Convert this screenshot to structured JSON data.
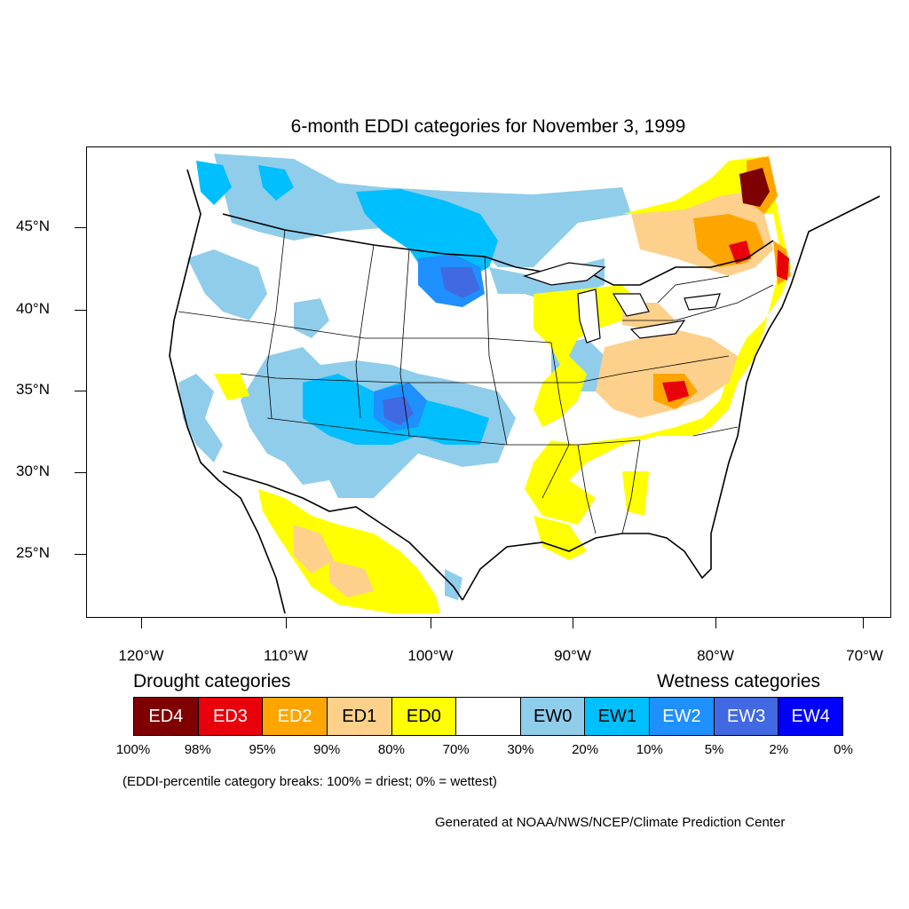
{
  "title": "6-month EDDI categories for November 3, 1999",
  "map": {
    "projection": "lambert-conformal-conus",
    "region": "Contiguous United States with southern Canada and northern Mexico",
    "lat_labels": [
      "45°N",
      "40°N",
      "35°N",
      "30°N",
      "25°N"
    ],
    "lon_labels": [
      "120°W",
      "110°W",
      "100°W",
      "90°W",
      "80°W",
      "70°W"
    ],
    "colors": {
      "ED4": "#7f0000",
      "ED3": "#e8000b",
      "ED2": "#ffa500",
      "ED1": "#fdd08b",
      "ED0": "#ffff00",
      "NONE": "#ffffff",
      "EW0": "#8fcdeb",
      "EW1": "#00bfff",
      "EW2": "#1e90ff",
      "EW3": "#4169e1",
      "EW4": "#0000ff"
    },
    "patterns": [
      "Drought (ED0-ED4) across the Northeast, Ohio Valley, Appalachians, Great Lakes, Gulf Coast and northern Mexico",
      "Wetness (EW0-EW3) across the northern Plains, Intermountain West, Southwest and southern High Plains"
    ]
  },
  "legend": {
    "drought_heading": "Drought categories",
    "wetness_heading": "Wetness categories",
    "categories": [
      {
        "label": "ED4",
        "color": "#7f0000",
        "text_color": "#ffffff"
      },
      {
        "label": "ED3",
        "color": "#e8000b",
        "text_color": "#ffffff"
      },
      {
        "label": "ED2",
        "color": "#ffa500",
        "text_color": "#ffffff"
      },
      {
        "label": "ED1",
        "color": "#fdd08b",
        "text_color": "#000000"
      },
      {
        "label": "ED0",
        "color": "#ffff00",
        "text_color": "#000000"
      },
      {
        "label": "",
        "color": "#ffffff",
        "text_color": "#000000"
      },
      {
        "label": "EW0",
        "color": "#8fcdeb",
        "text_color": "#000000"
      },
      {
        "label": "EW1",
        "color": "#00bfff",
        "text_color": "#000000"
      },
      {
        "label": "EW2",
        "color": "#1e90ff",
        "text_color": "#ffffff"
      },
      {
        "label": "EW3",
        "color": "#4169e1",
        "text_color": "#ffffff"
      },
      {
        "label": "EW4",
        "color": "#0000ff",
        "text_color": "#ffffff"
      }
    ],
    "breaks": [
      "100%",
      "98%",
      "95%",
      "90%",
      "80%",
      "70%",
      "30%",
      "20%",
      "10%",
      "5%",
      "2%",
      "0%"
    ]
  },
  "note": "(EDDI-percentile category breaks: 100% = driest; 0% = wettest)",
  "credit": "Generated at NOAA/NWS/NCEP/Climate Prediction Center"
}
